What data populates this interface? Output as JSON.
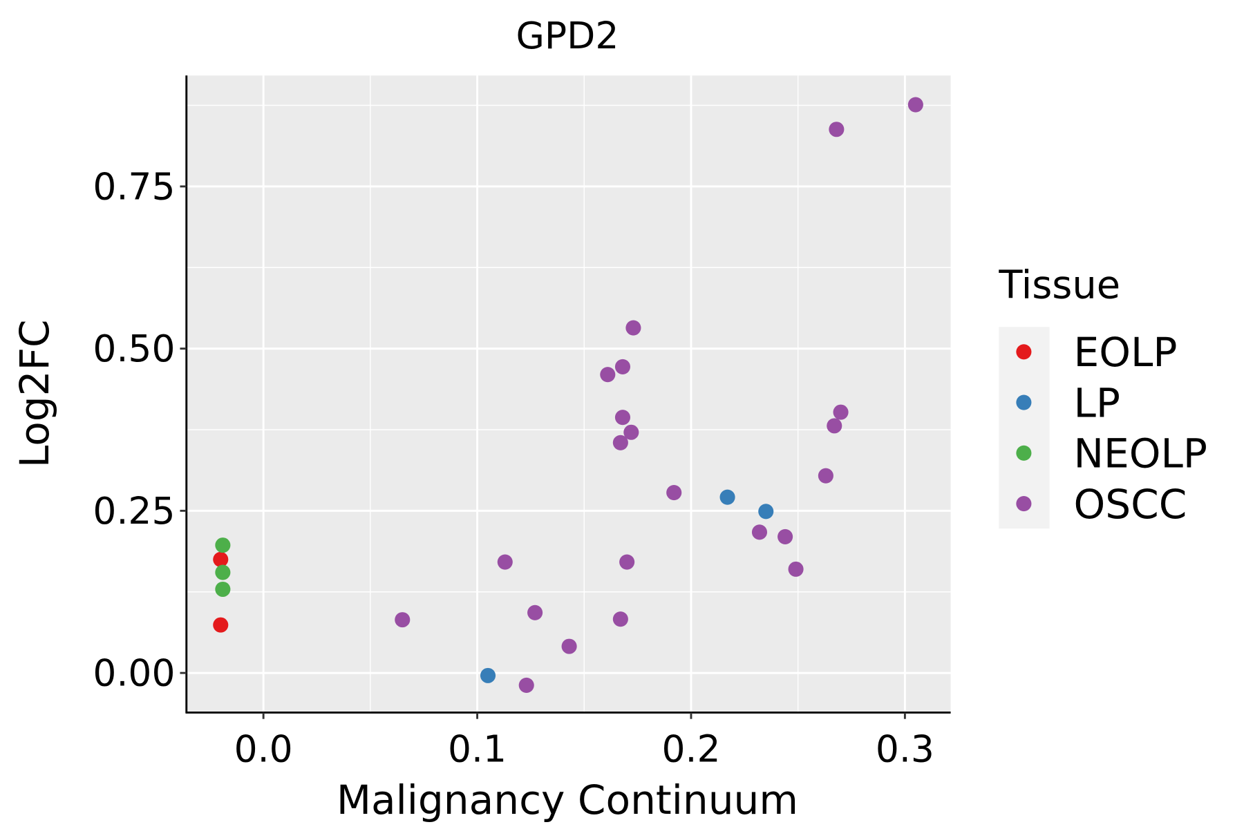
{
  "chart_data": {
    "type": "scatter",
    "title": "GPD2",
    "xlabel": "Malignancy Continuum",
    "ylabel": "Log2FC",
    "xlim": [
      -0.036,
      0.3214
    ],
    "ylim": [
      -0.061,
      0.921
    ],
    "xticks": [
      0.0,
      0.1,
      0.2,
      0.3
    ],
    "xtick_labels": [
      "0.0",
      "0.1",
      "0.2",
      "0.3"
    ],
    "yticks": [
      0.0,
      0.25,
      0.5,
      0.75
    ],
    "ytick_labels": [
      "0.00",
      "0.25",
      "0.50",
      "0.75"
    ],
    "grid": true,
    "legend": {
      "title": "Tissue",
      "placement": "right"
    },
    "series": [
      {
        "name": "EOLP",
        "color": "#e41a1c",
        "points": [
          [
            -0.02,
            0.175
          ],
          [
            -0.02,
            0.074
          ]
        ]
      },
      {
        "name": "LP",
        "color": "#377eb8",
        "points": [
          [
            0.105,
            -0.004
          ],
          [
            0.217,
            0.271
          ],
          [
            0.235,
            0.249
          ]
        ]
      },
      {
        "name": "NEOLP",
        "color": "#4daf4a",
        "points": [
          [
            -0.019,
            0.197
          ],
          [
            -0.019,
            0.155
          ],
          [
            -0.019,
            0.129
          ]
        ]
      },
      {
        "name": "OSCC",
        "color": "#984ea3",
        "points": [
          [
            0.305,
            0.876
          ],
          [
            0.268,
            0.838
          ],
          [
            0.173,
            0.532
          ],
          [
            0.168,
            0.472
          ],
          [
            0.161,
            0.46
          ],
          [
            0.168,
            0.394
          ],
          [
            0.172,
            0.371
          ],
          [
            0.167,
            0.355
          ],
          [
            0.27,
            0.402
          ],
          [
            0.267,
            0.381
          ],
          [
            0.263,
            0.304
          ],
          [
            0.192,
            0.278
          ],
          [
            0.232,
            0.217
          ],
          [
            0.244,
            0.21
          ],
          [
            0.249,
            0.16
          ],
          [
            0.17,
            0.171
          ],
          [
            0.113,
            0.171
          ],
          [
            0.127,
            0.093
          ],
          [
            0.167,
            0.083
          ],
          [
            0.065,
            0.082
          ],
          [
            0.143,
            0.041
          ],
          [
            0.123,
            -0.019
          ]
        ]
      }
    ]
  }
}
